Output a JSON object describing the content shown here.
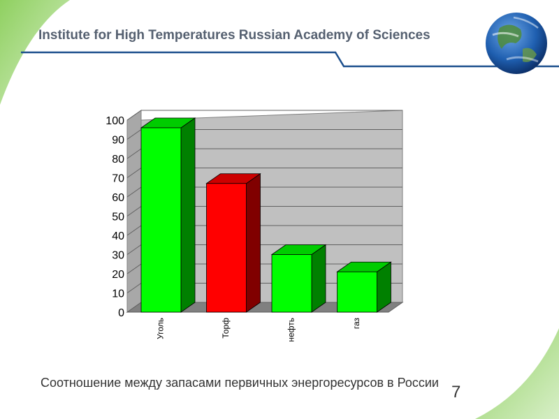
{
  "header": {
    "title": "Institute for High Temperatures Russian Academy of Sciences"
  },
  "caption": "Соотношение между запасами первичных энергоресурсов в России",
  "page_number": "7",
  "colors": {
    "green_bar": "#00ff00",
    "red_bar": "#ff0000",
    "header_line": "#1a4e8c",
    "accent_green": "#6fbf3f"
  },
  "chart_data": {
    "type": "bar",
    "categories": [
      "Уголь",
      "Торф",
      "нефть",
      "газ"
    ],
    "values": [
      96,
      67,
      30,
      21
    ],
    "bar_colors": [
      "#00ff00",
      "#ff0000",
      "#00ff00",
      "#00ff00"
    ],
    "title": "",
    "xlabel": "",
    "ylabel": "",
    "ylim": [
      0,
      100
    ],
    "yticks": [
      0,
      10,
      20,
      30,
      40,
      50,
      60,
      70,
      80,
      90,
      100
    ],
    "grid": true,
    "style": "3d"
  }
}
